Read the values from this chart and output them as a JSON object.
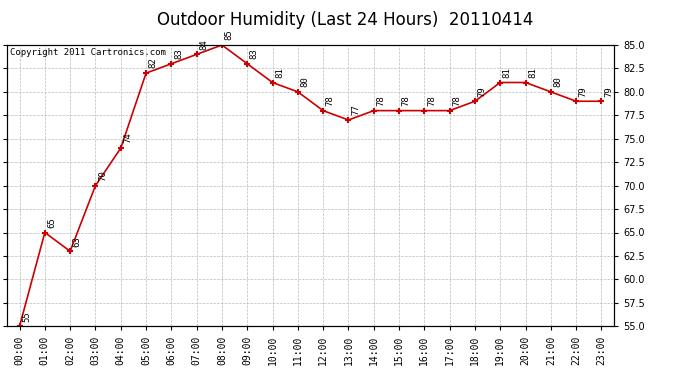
{
  "title": "Outdoor Humidity (Last 24 Hours)  20110414",
  "copyright_text": "Copyright 2011 Cartronics.com",
  "x_labels": [
    "00:00",
    "01:00",
    "02:00",
    "03:00",
    "04:00",
    "05:00",
    "06:00",
    "07:00",
    "08:00",
    "09:00",
    "10:00",
    "11:00",
    "12:00",
    "13:00",
    "14:00",
    "15:00",
    "16:00",
    "17:00",
    "18:00",
    "19:00",
    "20:00",
    "21:00",
    "22:00",
    "23:00"
  ],
  "y_values": [
    55,
    65,
    63,
    70,
    74,
    82,
    83,
    84,
    85,
    83,
    81,
    80,
    78,
    77,
    78,
    78,
    78,
    78,
    79,
    81,
    81,
    80,
    79,
    79
  ],
  "ylim_min": 55.0,
  "ylim_max": 85.0,
  "y_ticks": [
    55.0,
    57.5,
    60.0,
    62.5,
    65.0,
    67.5,
    70.0,
    72.5,
    75.0,
    77.5,
    80.0,
    82.5,
    85.0
  ],
  "line_color": "#cc0000",
  "marker_color": "#cc0000",
  "background_color": "#ffffff",
  "grid_color": "#bbbbbb",
  "title_fontsize": 12,
  "annotation_fontsize": 6.5,
  "tick_fontsize": 7,
  "copyright_fontsize": 6.5
}
